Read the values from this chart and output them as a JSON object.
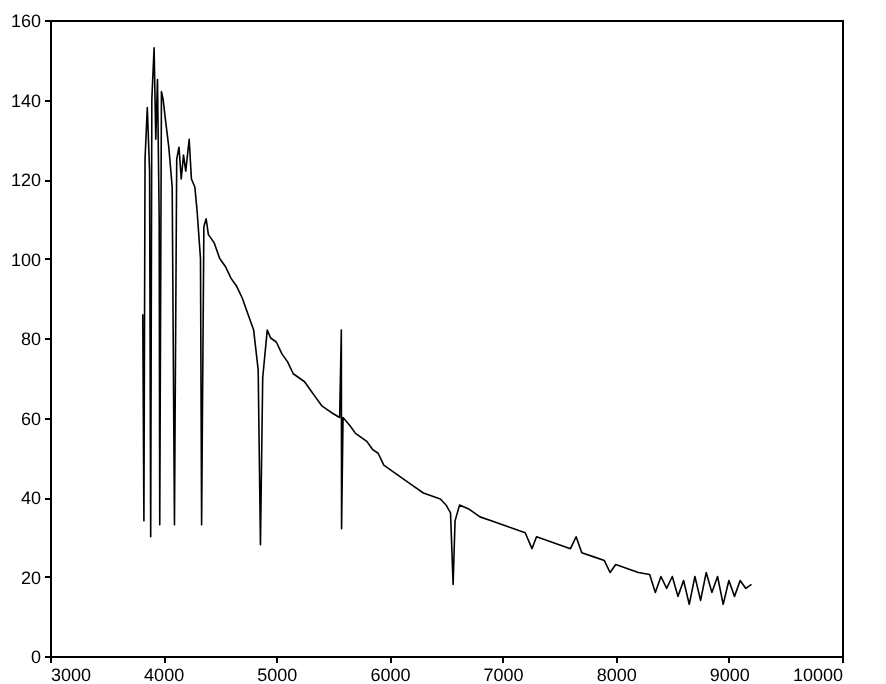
{
  "chart_data": {
    "type": "line",
    "xlim": [
      3000,
      10000
    ],
    "xticks": [
      3000,
      4000,
      5000,
      6000,
      7000,
      8000,
      9000,
      10000
    ],
    "ylim": [
      0,
      160
    ],
    "yticks": [
      0,
      20,
      40,
      60,
      80,
      100,
      120,
      140,
      160
    ],
    "grid": false,
    "series": [
      {
        "color": "#000000",
        "x": [
          3820,
          3830,
          3840,
          3860,
          3880,
          3890,
          3900,
          3920,
          3935,
          3950,
          3965,
          3970,
          3985,
          4000,
          4020,
          4050,
          4080,
          4100,
          4120,
          4140,
          4160,
          4180,
          4200,
          4230,
          4250,
          4280,
          4300,
          4330,
          4340,
          4360,
          4380,
          4400,
          4450,
          4500,
          4550,
          4600,
          4650,
          4700,
          4750,
          4800,
          4840,
          4860,
          4880,
          4920,
          4950,
          5000,
          5050,
          5100,
          5150,
          5200,
          5250,
          5300,
          5350,
          5400,
          5450,
          5500,
          5560,
          5575,
          5577,
          5590,
          5650,
          5700,
          5750,
          5800,
          5850,
          5900,
          5950,
          6000,
          6100,
          6200,
          6300,
          6400,
          6450,
          6500,
          6540,
          6563,
          6580,
          6620,
          6700,
          6800,
          6900,
          7000,
          7100,
          7200,
          7260,
          7300,
          7400,
          7500,
          7600,
          7650,
          7700,
          7800,
          7900,
          7950,
          8000,
          8100,
          8200,
          8300,
          8350,
          8400,
          8450,
          8500,
          8550,
          8600,
          8650,
          8700,
          8750,
          8800,
          8850,
          8900,
          8950,
          9000,
          9050,
          9100,
          9150,
          9200
        ],
        "values": [
          86,
          34,
          125,
          138,
          122,
          30,
          140,
          153,
          130,
          145,
          110,
          33,
          142,
          140,
          135,
          128,
          118,
          33,
          125,
          128,
          120,
          126,
          122,
          130,
          120,
          118,
          112,
          100,
          33,
          108,
          110,
          106,
          104,
          100,
          98,
          95,
          93,
          90,
          86,
          82,
          72,
          28,
          70,
          82,
          80,
          79,
          76,
          74,
          71,
          70,
          69,
          67,
          65,
          63,
          62,
          61,
          60,
          82,
          32,
          60,
          58,
          56,
          55,
          54,
          52,
          51,
          48,
          47,
          45,
          43,
          41,
          40,
          39.5,
          38,
          36,
          18,
          34,
          38,
          37,
          35,
          34,
          33,
          32,
          31,
          27,
          30,
          29,
          28,
          27,
          30,
          26,
          25,
          24,
          21,
          23,
          22,
          21,
          20.5,
          16,
          20,
          17,
          20,
          15,
          19,
          13,
          20,
          14,
          21,
          16,
          20,
          13,
          19,
          15,
          19,
          17,
          18
        ]
      }
    ]
  }
}
